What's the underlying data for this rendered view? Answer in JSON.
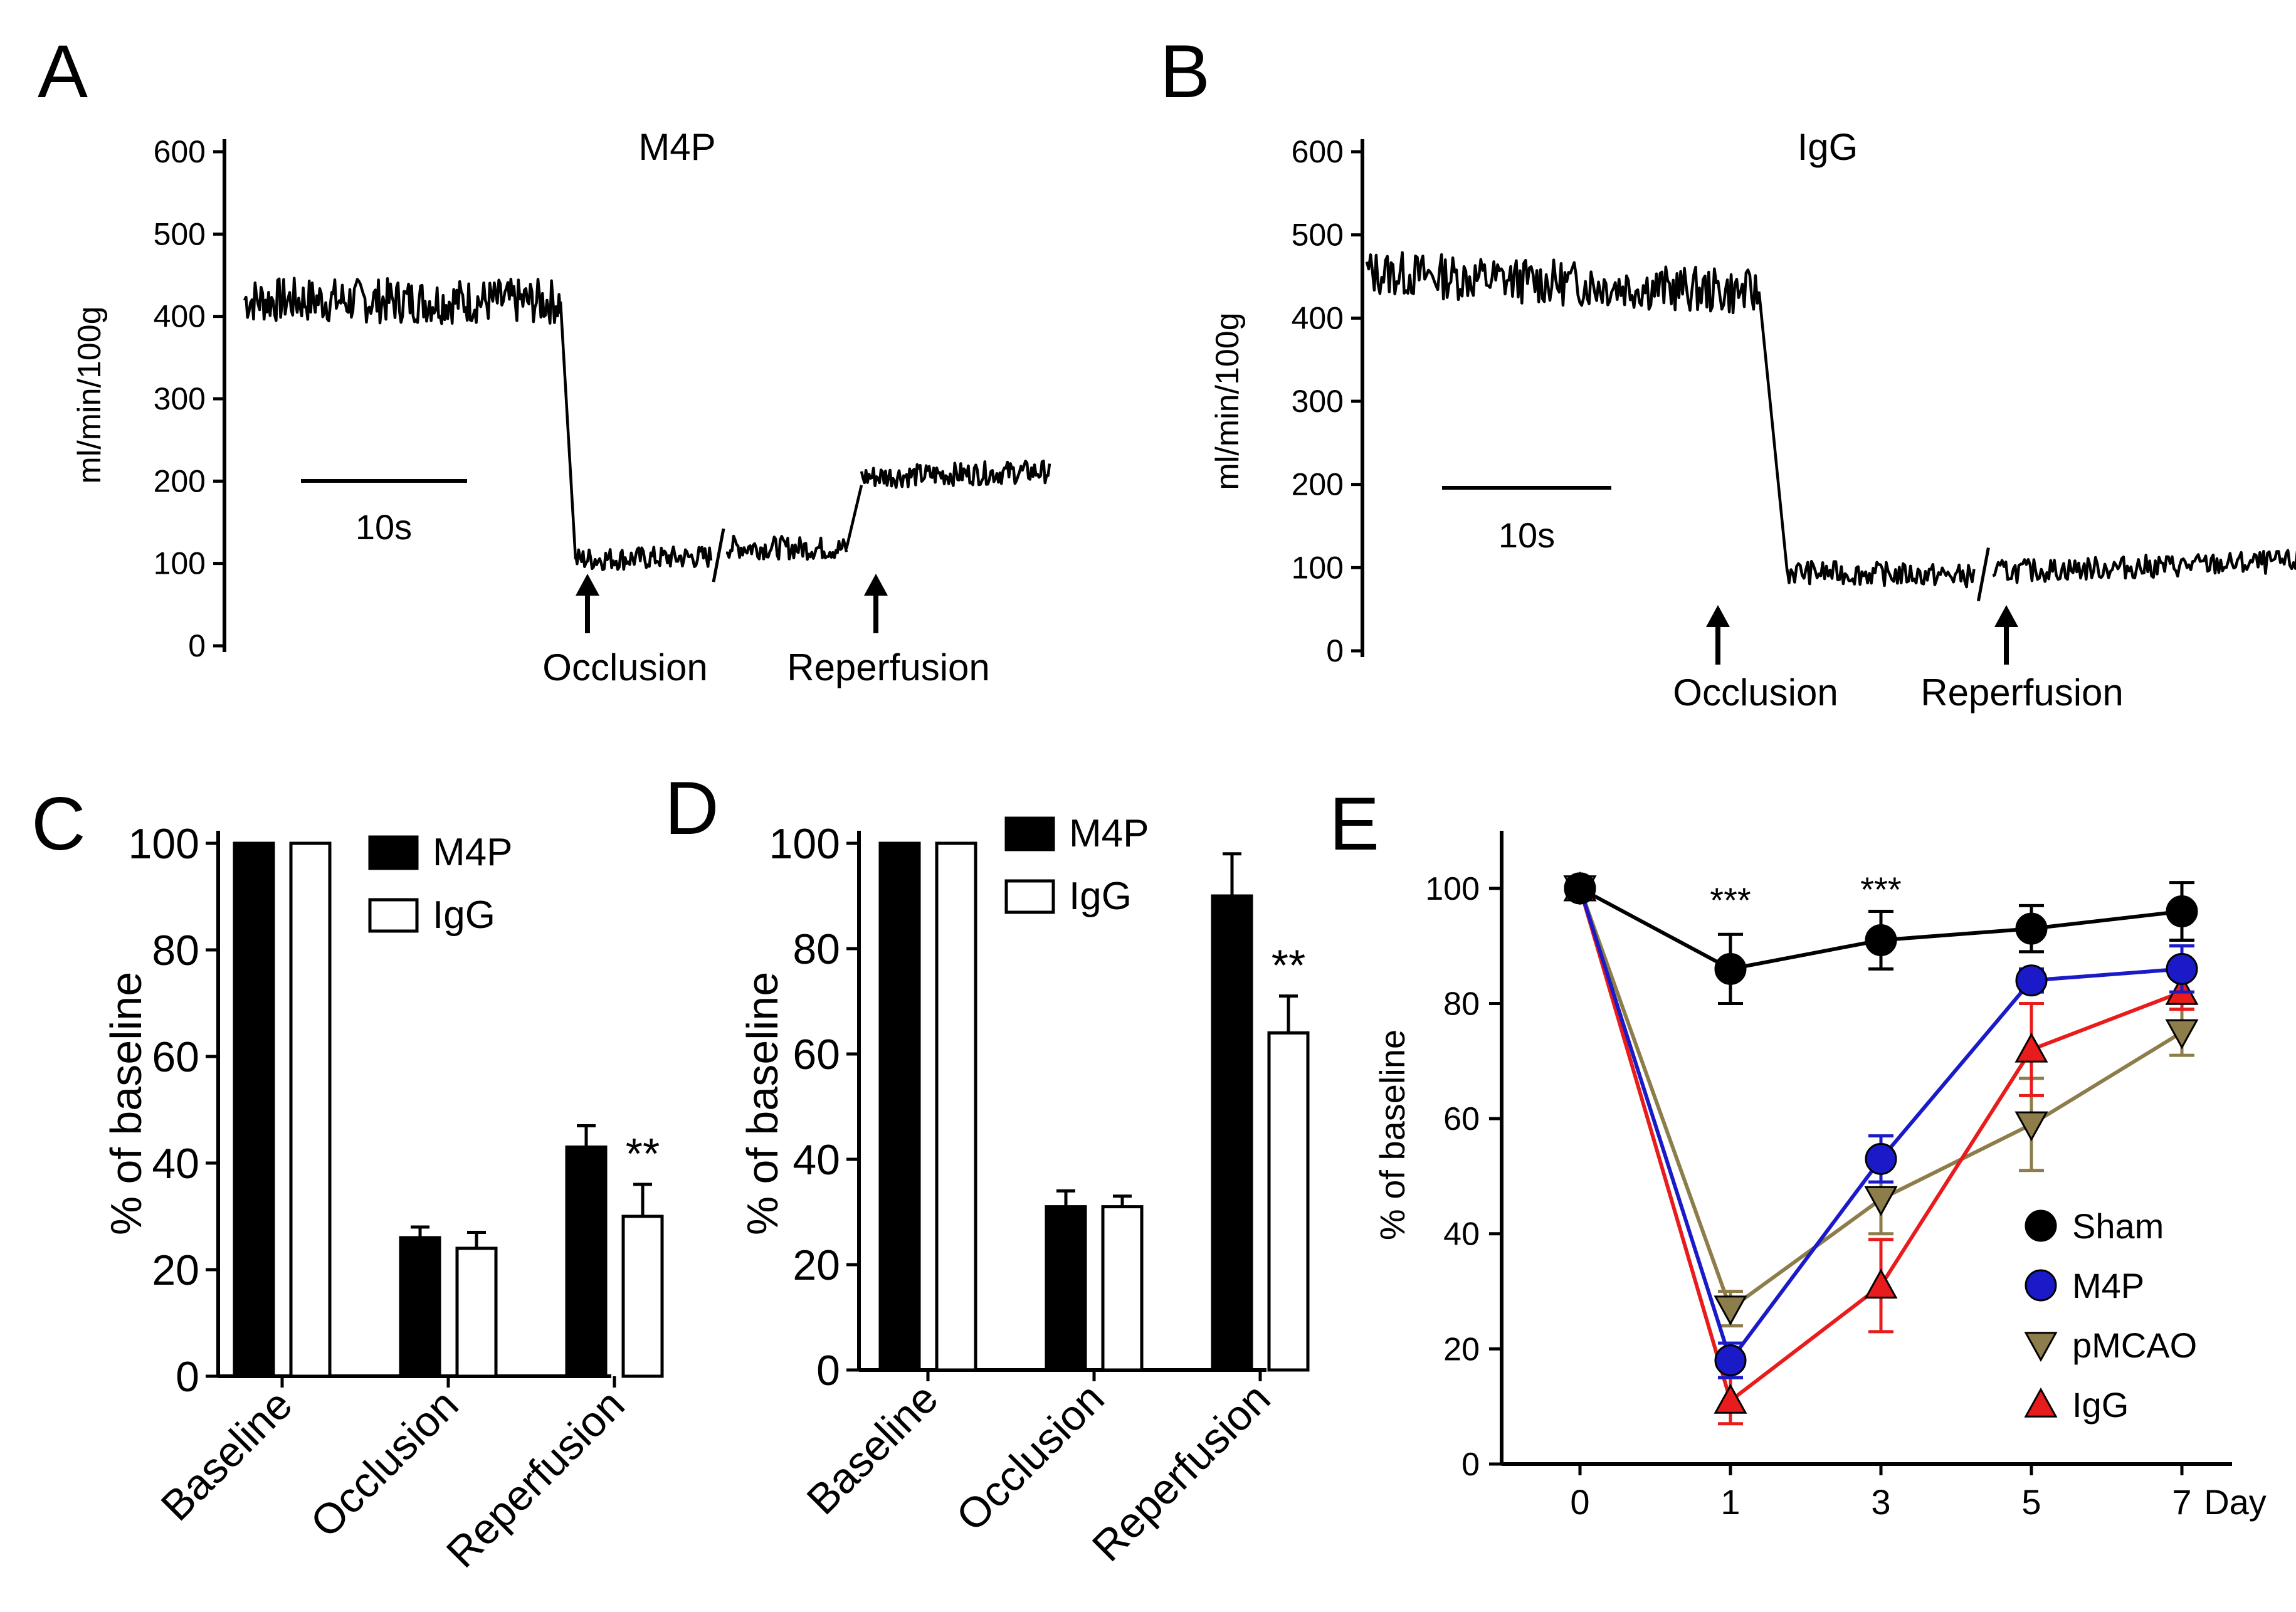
{
  "panels": {
    "A": {
      "letter": "A",
      "title": "M4P",
      "ylabel": "ml/min/100g",
      "scalebar": "10s",
      "arrow1": "Occlusion",
      "arrow2": "Reperfusion"
    },
    "B": {
      "letter": "B",
      "title": "IgG",
      "ylabel": "ml/min/100g",
      "scalebar": "10s",
      "arrow1": "Occlusion",
      "arrow2": "Reperfusion"
    },
    "C": {
      "letter": "C",
      "ylabel": "% of baseline",
      "significance": "**"
    },
    "D": {
      "letter": "D",
      "ylabel": "% of baseline",
      "significance": "**"
    },
    "E": {
      "letter": "E",
      "ylabel": "% of baseline",
      "significance": [
        "***",
        "***"
      ],
      "x_unit": "Day"
    }
  },
  "colors": {
    "black": "#000000",
    "sham": "#000000",
    "m4p": "#1a1ac8",
    "pmcao": "#8c7d4b",
    "igg": "#e81c1c"
  },
  "chart_data": [
    {
      "panel": "A",
      "type": "line",
      "title": "M4P",
      "ylabel": "ml/min/100g",
      "yticks": [
        0,
        100,
        200,
        300,
        400,
        500,
        600
      ],
      "ylim": [
        0,
        600
      ],
      "segments": [
        {
          "x": [
            0,
            42
          ],
          "y": [
            420,
            418
          ]
        },
        {
          "x": [
            42,
            44
          ],
          "y": [
            418,
            105
          ]
        },
        {
          "x": [
            44,
            62
          ],
          "y": [
            105,
            108
          ]
        },
        {
          "x": [
            64,
            80
          ],
          "y": [
            120,
            118
          ]
        },
        {
          "x": [
            80,
            82
          ],
          "y": [
            118,
            195
          ]
        },
        {
          "x": [
            82,
            107
          ],
          "y": [
            205,
            212
          ]
        }
      ],
      "annotations": [
        "Occlusion",
        "Reperfusion",
        "10s"
      ]
    },
    {
      "panel": "B",
      "type": "line",
      "title": "IgG",
      "ylabel": "ml/min/100g",
      "yticks": [
        0,
        100,
        200,
        300,
        400,
        500,
        600
      ],
      "ylim": [
        0,
        600
      ],
      "segments": [
        {
          "x": [
            0,
            42
          ],
          "y": [
            455,
            430
          ]
        },
        {
          "x": [
            42,
            45
          ],
          "y": [
            430,
            95
          ]
        },
        {
          "x": [
            45,
            65
          ],
          "y": [
            95,
            90
          ]
        },
        {
          "x": [
            67,
            107
          ],
          "y": [
            95,
            110
          ]
        }
      ],
      "annotations": [
        "Occlusion",
        "Reperfusion",
        "10s"
      ]
    },
    {
      "panel": "C",
      "type": "bar",
      "ylabel": "% of baseline",
      "yticks": [
        0,
        20,
        40,
        60,
        80,
        100
      ],
      "ylim": [
        0,
        100
      ],
      "categories": [
        "Baseline",
        "Occlusion",
        "Reperfusion"
      ],
      "series": [
        {
          "name": "M4P",
          "values": [
            100,
            26,
            43
          ],
          "errors": [
            0,
            2,
            4
          ]
        },
        {
          "name": "IgG",
          "values": [
            100,
            24,
            30
          ],
          "errors": [
            0,
            3,
            6
          ]
        }
      ],
      "legend": [
        "M4P",
        "IgG"
      ]
    },
    {
      "panel": "D",
      "type": "bar",
      "ylabel": "% of baseline",
      "yticks": [
        0,
        20,
        40,
        60,
        80,
        100
      ],
      "ylim": [
        0,
        100
      ],
      "categories": [
        "Baseline",
        "Occlusion",
        "Reperfusion"
      ],
      "series": [
        {
          "name": "M4P",
          "values": [
            100,
            31,
            90
          ],
          "errors": [
            0,
            3,
            8
          ]
        },
        {
          "name": "IgG",
          "values": [
            100,
            31,
            64
          ],
          "errors": [
            0,
            2,
            7
          ]
        }
      ],
      "legend": [
        "M4P",
        "IgG"
      ]
    },
    {
      "panel": "E",
      "type": "line",
      "ylabel": "% of baseline",
      "x": [
        0,
        1,
        3,
        5,
        7
      ],
      "xticklabels": [
        "0",
        "1",
        "3",
        "5",
        "7"
      ],
      "yticks": [
        0,
        20,
        40,
        60,
        80,
        100
      ],
      "ylim": [
        0,
        110
      ],
      "legend": [
        "Sham",
        "M4P",
        "pMCAO",
        "IgG"
      ],
      "legend_position": "bottom-right",
      "series": [
        {
          "name": "Sham",
          "marker": "circle",
          "values": [
            100,
            86,
            91,
            93,
            96
          ],
          "errors": [
            0,
            6,
            5,
            4,
            5
          ]
        },
        {
          "name": "M4P",
          "marker": "circle",
          "values": [
            100,
            18,
            53,
            84,
            86
          ],
          "errors": [
            0,
            3,
            4,
            2,
            4
          ]
        },
        {
          "name": "pMCAO",
          "marker": "triangle-down",
          "values": [
            100,
            27,
            46,
            59,
            75
          ],
          "errors": [
            0,
            3,
            6,
            8,
            4
          ]
        },
        {
          "name": "IgG",
          "marker": "triangle-up",
          "values": [
            100,
            11,
            31,
            72,
            82
          ],
          "errors": [
            0,
            4,
            8,
            8,
            3
          ]
        }
      ]
    }
  ]
}
